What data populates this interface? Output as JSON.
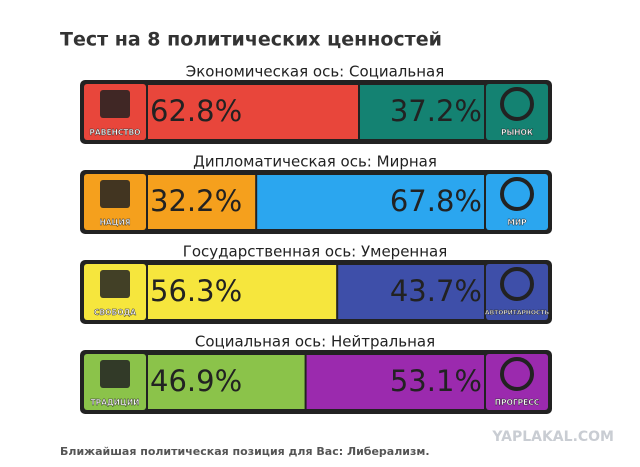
{
  "title": "Тест на 8 политических ценностей",
  "axes": [
    {
      "title": "Экономическая ось: Социальная",
      "left": {
        "icon_label": "РАВЕНСТВО",
        "value": 62.8,
        "value_label": "62.8%",
        "color": "#e8463b"
      },
      "right": {
        "icon_label": "РЫНОК",
        "value": 37.2,
        "value_label": "37.2%",
        "color": "#148272"
      }
    },
    {
      "title": "Дипломатическая ось: Мирная",
      "left": {
        "icon_label": "НАЦИЯ",
        "value": 32.2,
        "value_label": "32.2%",
        "color": "#f5a01d"
      },
      "right": {
        "icon_label": "МИР",
        "value": 67.8,
        "value_label": "67.8%",
        "color": "#2ba6ef"
      }
    },
    {
      "title": "Государственная ось: Умеренная",
      "left": {
        "icon_label": "СВОБОДА",
        "value": 56.3,
        "value_label": "56.3%",
        "color": "#f6e63d"
      },
      "right": {
        "icon_label": "АВТОРИТАРНОСТЬ",
        "value": 43.7,
        "value_label": "43.7%",
        "color": "#3e4fa9"
      }
    },
    {
      "title": "Социальная ось: Нейтральная",
      "left": {
        "icon_label": "ТРАДИЦИИ",
        "value": 46.9,
        "value_label": "46.9%",
        "color": "#8bc34a"
      },
      "right": {
        "icon_label": "ПРОГРЕСС",
        "value": 53.1,
        "value_label": "53.1%",
        "color": "#9b2aae"
      }
    }
  ],
  "footer": "Ближайшая политическая позиция для Вас: Либерализм.",
  "watermark": "YAPLAKAL.COM"
}
